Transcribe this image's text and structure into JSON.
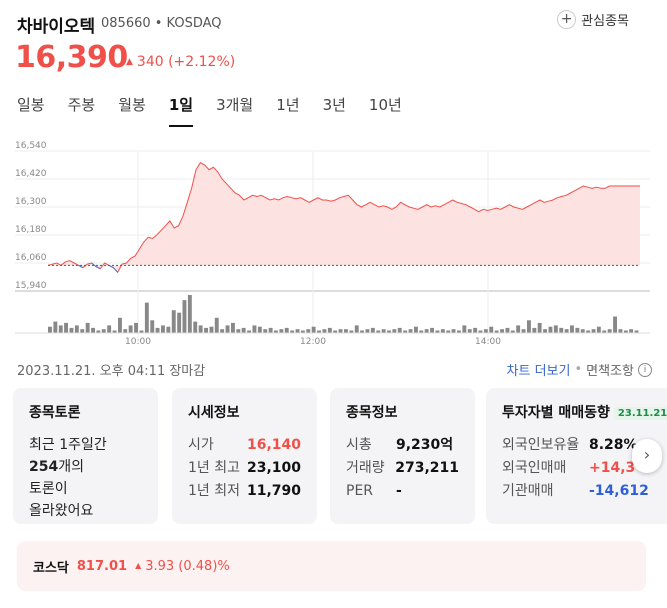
{
  "header": {
    "name": "차바이오텍",
    "code_market": "085660 • KOSDAQ",
    "watch_icon": "plus-circle-icon",
    "watch_label": "관심종목"
  },
  "price": {
    "current": "16,390",
    "change_arrow": "▲",
    "change": "340 (+2.12%)",
    "color_up": "#f0504a"
  },
  "tabs": [
    {
      "label": "일봉",
      "active": false
    },
    {
      "label": "주봉",
      "active": false
    },
    {
      "label": "월봉",
      "active": false
    },
    {
      "label": "1일",
      "active": true
    },
    {
      "label": "3개월",
      "active": false
    },
    {
      "label": "1년",
      "active": false
    },
    {
      "label": "3년",
      "active": false
    },
    {
      "label": "10년",
      "active": false
    }
  ],
  "chart_data": {
    "type": "area",
    "y_ticks": [
      "16,540",
      "16,420",
      "16,300",
      "16,180",
      "16,060",
      "15,940"
    ],
    "ylim": [
      15940,
      16540
    ],
    "x_ticks": [
      "10:00",
      "12:00",
      "14:00"
    ],
    "prev_close": 16050,
    "price_series": [
      16050,
      16055,
      16060,
      16050,
      16065,
      16070,
      16060,
      16050,
      16040,
      16055,
      16060,
      16045,
      16035,
      16060,
      16050,
      16040,
      16020,
      16055,
      16060,
      16080,
      16090,
      16120,
      16150,
      16170,
      16165,
      16180,
      16200,
      16220,
      16240,
      16210,
      16220,
      16260,
      16320,
      16380,
      16460,
      16490,
      16480,
      16460,
      16470,
      16450,
      16420,
      16400,
      16380,
      16360,
      16350,
      16330,
      16340,
      16350,
      16345,
      16350,
      16340,
      16330,
      16335,
      16330,
      16340,
      16345,
      16340,
      16335,
      16340,
      16330,
      16320,
      16330,
      16340,
      16330,
      16330,
      16325,
      16330,
      16340,
      16345,
      16350,
      16330,
      16310,
      16300,
      16310,
      16320,
      16310,
      16300,
      16305,
      16300,
      16290,
      16300,
      16320,
      16310,
      16300,
      16295,
      16290,
      16300,
      16310,
      16300,
      16305,
      16300,
      16310,
      16320,
      16330,
      16320,
      16315,
      16310,
      16300,
      16290,
      16280,
      16290,
      16285,
      16290,
      16295,
      16290,
      16300,
      16310,
      16300,
      16295,
      16290,
      16300,
      16310,
      16320,
      16330,
      16320,
      16325,
      16330,
      16340,
      16345,
      16350,
      16360,
      16370,
      16380,
      16390,
      16385,
      16380,
      16385,
      16380,
      16380,
      16390,
      16390,
      16390,
      16390,
      16390,
      16390,
      16390,
      16390
    ],
    "volume_series": [
      5,
      9,
      6,
      8,
      4,
      6,
      3,
      8,
      4,
      2,
      3,
      6,
      2,
      12,
      3,
      6,
      8,
      2,
      24,
      10,
      4,
      6,
      5,
      18,
      16,
      26,
      30,
      9,
      6,
      4,
      5,
      12,
      3,
      6,
      8,
      3,
      4,
      2,
      6,
      5,
      3,
      4,
      2,
      3,
      4,
      2,
      3,
      2,
      3,
      5,
      2,
      3,
      4,
      2,
      3,
      3,
      2,
      6,
      2,
      3,
      4,
      2,
      3,
      2,
      3,
      4,
      2,
      3,
      5,
      2,
      3,
      4,
      2,
      3,
      2,
      3,
      2,
      6,
      3,
      4,
      2,
      3,
      5,
      2,
      3,
      4,
      2,
      6,
      3,
      10,
      4,
      8,
      3,
      5,
      6,
      4,
      3,
      6,
      4,
      3,
      2,
      3,
      5,
      2,
      3,
      13,
      3,
      2,
      3,
      2
    ]
  },
  "meta": {
    "time": "2023.11.21. 오후 04:11 장마감",
    "chart_more": "차트 더보기",
    "disclaimer": "면책조항",
    "info_icon": "info-icon"
  },
  "cards": {
    "discussion": {
      "title": "종목토론",
      "line1": "최근 1주일간",
      "count": "254",
      "line2_suffix": "개의",
      "line3": "토론이",
      "line4": "올라왔어요"
    },
    "quote": {
      "title": "시세정보",
      "rows": [
        {
          "label": "시가",
          "value": "16,140",
          "color": "red"
        },
        {
          "label": "1년 최고",
          "value": "23,100",
          "color": ""
        },
        {
          "label": "1년 최저",
          "value": "11,790",
          "color": ""
        }
      ]
    },
    "info": {
      "title": "종목정보",
      "rows": [
        {
          "label": "시총",
          "value": "9,230억"
        },
        {
          "label": "거래량",
          "value": "273,211"
        },
        {
          "label": "PER",
          "value": "-"
        }
      ]
    },
    "investor": {
      "title": "투자자별 매매동향",
      "date": "23.11.21",
      "rows": [
        {
          "label": "외국인보유율",
          "value": "8.28%",
          "color": ""
        },
        {
          "label": "외국인매매",
          "value": "+14,3",
          "color": "red"
        },
        {
          "label": "기관매매",
          "value": "-14,612",
          "color": "blue"
        }
      ]
    }
  },
  "next_icon": "chevron-right-icon",
  "kosdaq": {
    "name": "코스닥",
    "value": "817.01",
    "arrow": "▲",
    "change": "3.93 (0.48)%"
  }
}
